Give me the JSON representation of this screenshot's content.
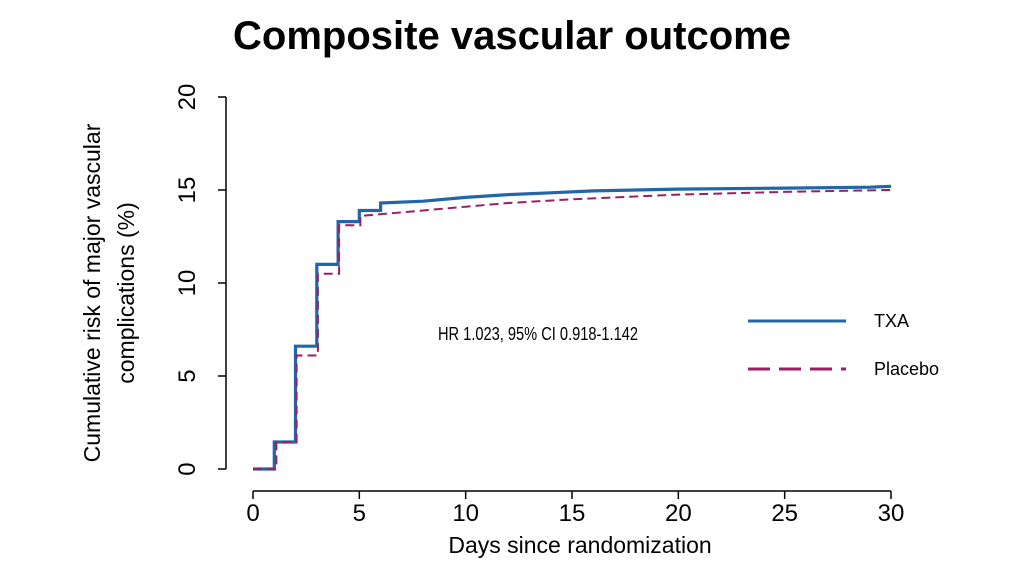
{
  "chart_data": {
    "type": "line",
    "title": "Composite vascular outcome",
    "xlabel": "Days since randomization",
    "ylabel": [
      "Cumulative risk of major vascular",
      "complications (%)"
    ],
    "xlim": [
      0,
      30
    ],
    "ylim": [
      0,
      20
    ],
    "xticks": [
      0,
      5,
      10,
      15,
      20,
      25,
      30
    ],
    "yticks": [
      0,
      5,
      10,
      15,
      20
    ],
    "annotation": "HR 1.023, 95% CI 0.918-1.142",
    "legend": {
      "position": "right",
      "entries": [
        "TXA",
        "Placebo"
      ]
    },
    "series": [
      {
        "name": "TXA",
        "color": "#2166a8",
        "style": "solid",
        "points": [
          [
            0,
            0
          ],
          [
            1,
            0
          ],
          [
            1,
            1.45
          ],
          [
            2,
            1.45
          ],
          [
            2,
            6.6
          ],
          [
            3,
            6.6
          ],
          [
            3,
            11.0
          ],
          [
            4,
            11.0
          ],
          [
            4,
            13.3
          ],
          [
            5,
            13.3
          ],
          [
            5,
            13.9
          ],
          [
            6,
            13.9
          ],
          [
            6,
            14.3
          ],
          [
            8,
            14.4
          ],
          [
            10,
            14.6
          ],
          [
            12,
            14.75
          ],
          [
            14,
            14.85
          ],
          [
            16,
            14.95
          ],
          [
            20,
            15.05
          ],
          [
            25,
            15.1
          ],
          [
            29,
            15.15
          ],
          [
            30,
            15.2
          ]
        ]
      },
      {
        "name": "Placebo",
        "color": "#9b1f63",
        "style": "dashed",
        "points": [
          [
            0,
            0
          ],
          [
            1.1,
            0
          ],
          [
            1.1,
            1.45
          ],
          [
            2.05,
            1.45
          ],
          [
            2.05,
            6.1
          ],
          [
            3.05,
            6.1
          ],
          [
            3.05,
            10.5
          ],
          [
            4.05,
            10.5
          ],
          [
            4.05,
            13.1
          ],
          [
            5.05,
            13.1
          ],
          [
            5.05,
            13.6
          ],
          [
            6,
            13.7
          ],
          [
            8,
            13.9
          ],
          [
            10,
            14.1
          ],
          [
            12,
            14.3
          ],
          [
            15,
            14.5
          ],
          [
            20,
            14.75
          ],
          [
            25,
            14.9
          ],
          [
            30,
            15.0
          ]
        ]
      }
    ]
  }
}
